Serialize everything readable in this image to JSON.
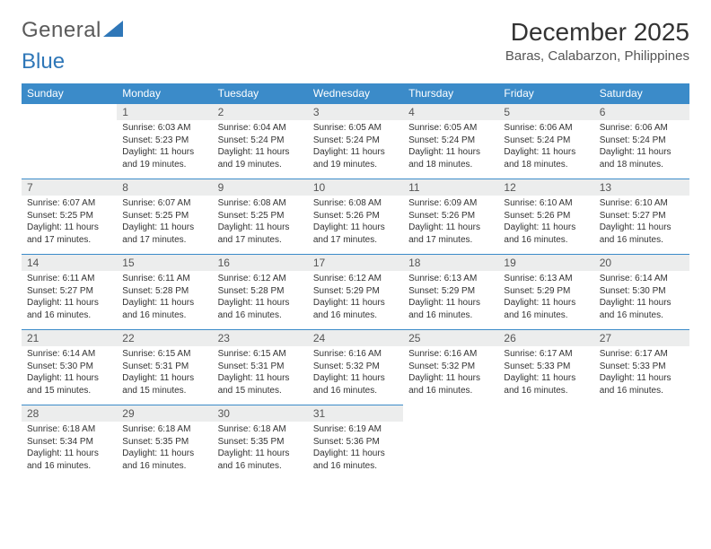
{
  "logo": {
    "text1": "General",
    "text2": "Blue",
    "color1": "#6a6a6a",
    "color2": "#2f77b8",
    "triangle_color": "#2f77b8"
  },
  "title": "December 2025",
  "location": "Baras, Calabarzon, Philippines",
  "weekday_header_bg": "#3b8bc9",
  "weekdays": [
    "Sunday",
    "Monday",
    "Tuesday",
    "Wednesday",
    "Thursday",
    "Friday",
    "Saturday"
  ],
  "weeks": [
    [
      {
        "n": "",
        "sr": "",
        "ss": "",
        "dl": ""
      },
      {
        "n": "1",
        "sr": "Sunrise: 6:03 AM",
        "ss": "Sunset: 5:23 PM",
        "dl": "Daylight: 11 hours and 19 minutes."
      },
      {
        "n": "2",
        "sr": "Sunrise: 6:04 AM",
        "ss": "Sunset: 5:24 PM",
        "dl": "Daylight: 11 hours and 19 minutes."
      },
      {
        "n": "3",
        "sr": "Sunrise: 6:05 AM",
        "ss": "Sunset: 5:24 PM",
        "dl": "Daylight: 11 hours and 19 minutes."
      },
      {
        "n": "4",
        "sr": "Sunrise: 6:05 AM",
        "ss": "Sunset: 5:24 PM",
        "dl": "Daylight: 11 hours and 18 minutes."
      },
      {
        "n": "5",
        "sr": "Sunrise: 6:06 AM",
        "ss": "Sunset: 5:24 PM",
        "dl": "Daylight: 11 hours and 18 minutes."
      },
      {
        "n": "6",
        "sr": "Sunrise: 6:06 AM",
        "ss": "Sunset: 5:24 PM",
        "dl": "Daylight: 11 hours and 18 minutes."
      }
    ],
    [
      {
        "n": "7",
        "sr": "Sunrise: 6:07 AM",
        "ss": "Sunset: 5:25 PM",
        "dl": "Daylight: 11 hours and 17 minutes."
      },
      {
        "n": "8",
        "sr": "Sunrise: 6:07 AM",
        "ss": "Sunset: 5:25 PM",
        "dl": "Daylight: 11 hours and 17 minutes."
      },
      {
        "n": "9",
        "sr": "Sunrise: 6:08 AM",
        "ss": "Sunset: 5:25 PM",
        "dl": "Daylight: 11 hours and 17 minutes."
      },
      {
        "n": "10",
        "sr": "Sunrise: 6:08 AM",
        "ss": "Sunset: 5:26 PM",
        "dl": "Daylight: 11 hours and 17 minutes."
      },
      {
        "n": "11",
        "sr": "Sunrise: 6:09 AM",
        "ss": "Sunset: 5:26 PM",
        "dl": "Daylight: 11 hours and 17 minutes."
      },
      {
        "n": "12",
        "sr": "Sunrise: 6:10 AM",
        "ss": "Sunset: 5:26 PM",
        "dl": "Daylight: 11 hours and 16 minutes."
      },
      {
        "n": "13",
        "sr": "Sunrise: 6:10 AM",
        "ss": "Sunset: 5:27 PM",
        "dl": "Daylight: 11 hours and 16 minutes."
      }
    ],
    [
      {
        "n": "14",
        "sr": "Sunrise: 6:11 AM",
        "ss": "Sunset: 5:27 PM",
        "dl": "Daylight: 11 hours and 16 minutes."
      },
      {
        "n": "15",
        "sr": "Sunrise: 6:11 AM",
        "ss": "Sunset: 5:28 PM",
        "dl": "Daylight: 11 hours and 16 minutes."
      },
      {
        "n": "16",
        "sr": "Sunrise: 6:12 AM",
        "ss": "Sunset: 5:28 PM",
        "dl": "Daylight: 11 hours and 16 minutes."
      },
      {
        "n": "17",
        "sr": "Sunrise: 6:12 AM",
        "ss": "Sunset: 5:29 PM",
        "dl": "Daylight: 11 hours and 16 minutes."
      },
      {
        "n": "18",
        "sr": "Sunrise: 6:13 AM",
        "ss": "Sunset: 5:29 PM",
        "dl": "Daylight: 11 hours and 16 minutes."
      },
      {
        "n": "19",
        "sr": "Sunrise: 6:13 AM",
        "ss": "Sunset: 5:29 PM",
        "dl": "Daylight: 11 hours and 16 minutes."
      },
      {
        "n": "20",
        "sr": "Sunrise: 6:14 AM",
        "ss": "Sunset: 5:30 PM",
        "dl": "Daylight: 11 hours and 16 minutes."
      }
    ],
    [
      {
        "n": "21",
        "sr": "Sunrise: 6:14 AM",
        "ss": "Sunset: 5:30 PM",
        "dl": "Daylight: 11 hours and 15 minutes."
      },
      {
        "n": "22",
        "sr": "Sunrise: 6:15 AM",
        "ss": "Sunset: 5:31 PM",
        "dl": "Daylight: 11 hours and 15 minutes."
      },
      {
        "n": "23",
        "sr": "Sunrise: 6:15 AM",
        "ss": "Sunset: 5:31 PM",
        "dl": "Daylight: 11 hours and 15 minutes."
      },
      {
        "n": "24",
        "sr": "Sunrise: 6:16 AM",
        "ss": "Sunset: 5:32 PM",
        "dl": "Daylight: 11 hours and 16 minutes."
      },
      {
        "n": "25",
        "sr": "Sunrise: 6:16 AM",
        "ss": "Sunset: 5:32 PM",
        "dl": "Daylight: 11 hours and 16 minutes."
      },
      {
        "n": "26",
        "sr": "Sunrise: 6:17 AM",
        "ss": "Sunset: 5:33 PM",
        "dl": "Daylight: 11 hours and 16 minutes."
      },
      {
        "n": "27",
        "sr": "Sunrise: 6:17 AM",
        "ss": "Sunset: 5:33 PM",
        "dl": "Daylight: 11 hours and 16 minutes."
      }
    ],
    [
      {
        "n": "28",
        "sr": "Sunrise: 6:18 AM",
        "ss": "Sunset: 5:34 PM",
        "dl": "Daylight: 11 hours and 16 minutes."
      },
      {
        "n": "29",
        "sr": "Sunrise: 6:18 AM",
        "ss": "Sunset: 5:35 PM",
        "dl": "Daylight: 11 hours and 16 minutes."
      },
      {
        "n": "30",
        "sr": "Sunrise: 6:18 AM",
        "ss": "Sunset: 5:35 PM",
        "dl": "Daylight: 11 hours and 16 minutes."
      },
      {
        "n": "31",
        "sr": "Sunrise: 6:19 AM",
        "ss": "Sunset: 5:36 PM",
        "dl": "Daylight: 11 hours and 16 minutes."
      },
      {
        "n": "",
        "sr": "",
        "ss": "",
        "dl": ""
      },
      {
        "n": "",
        "sr": "",
        "ss": "",
        "dl": ""
      },
      {
        "n": "",
        "sr": "",
        "ss": "",
        "dl": ""
      }
    ]
  ]
}
